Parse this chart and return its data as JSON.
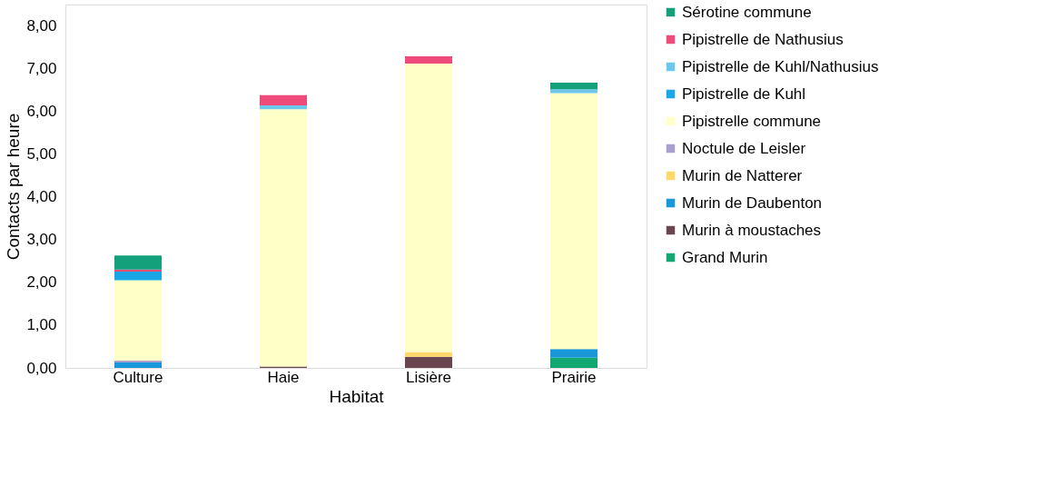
{
  "chart_data": {
    "type": "bar",
    "stacked": true,
    "xlabel": "Habitat",
    "ylabel": "Contacts par heure",
    "categories": [
      "Culture",
      "Haie",
      "Lisière",
      "Prairie"
    ],
    "ylim": [
      0,
      8.5
    ],
    "yticks": [
      {
        "value": 0,
        "label": "0,00"
      },
      {
        "value": 1,
        "label": "1,00"
      },
      {
        "value": 2,
        "label": "2,00"
      },
      {
        "value": 3,
        "label": "3,00"
      },
      {
        "value": 4,
        "label": "4,00"
      },
      {
        "value": 5,
        "label": "5,00"
      },
      {
        "value": 6,
        "label": "6,00"
      },
      {
        "value": 7,
        "label": "7,00"
      },
      {
        "value": 8,
        "label": "8,00"
      }
    ],
    "grid": false,
    "legend": "right",
    "series": [
      {
        "name": "Grand Murin",
        "color": "#13a872",
        "values": [
          null,
          null,
          null,
          0.24
        ]
      },
      {
        "name": "Murin à moustaches",
        "color": "#6b4650",
        "values": [
          null,
          0.03,
          0.26,
          null
        ]
      },
      {
        "name": "Murin de Daubenton",
        "color": "#1898d8",
        "values": [
          0.13,
          null,
          null,
          0.2
        ]
      },
      {
        "name": "Murin de Natterer",
        "color": "#ffd76a",
        "values": [
          null,
          null,
          0.11,
          null
        ]
      },
      {
        "name": "Noctule de Leisler",
        "color": "#a9a0d0",
        "values": [
          0.04,
          null,
          null,
          null
        ]
      },
      {
        "name": "Pipistrelle commune",
        "color": "#ffffc8",
        "values": [
          1.88,
          6.02,
          6.75,
          5.99
        ]
      },
      {
        "name": "Pipistrelle de Kuhl",
        "color": "#1aa7e6",
        "values": [
          0.2,
          null,
          null,
          null
        ]
      },
      {
        "name": "Pipistrelle de Kuhl/Nathusius",
        "color": "#6cc8ec",
        "values": [
          null,
          0.09,
          null,
          0.09
        ]
      },
      {
        "name": "Pipistrelle de Nathusius",
        "color": "#ee4a7a",
        "values": [
          0.05,
          0.24,
          0.17,
          null
        ]
      },
      {
        "name": "Sérotine commune",
        "color": "#14a07a",
        "values": [
          0.33,
          null,
          null,
          0.15
        ]
      }
    ]
  }
}
